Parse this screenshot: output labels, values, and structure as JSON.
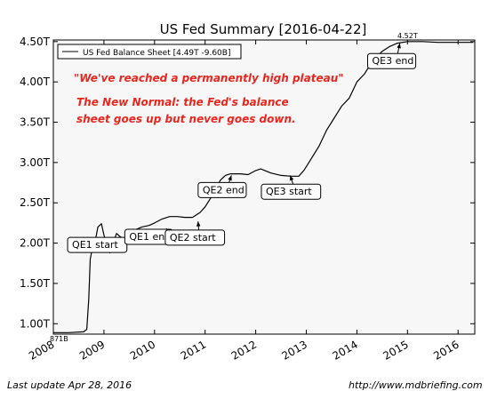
{
  "chart_data": {
    "type": "line",
    "title": "US Fed Summary  [2016-04-22]",
    "legend": {
      "label": "US Fed Balance Sheet [4.49T -9.60B]",
      "placement": "top-left"
    },
    "y_ticks": [
      "1.00T",
      "1.50T",
      "2.00T",
      "2.50T",
      "3.00T",
      "3.50T",
      "4.00T",
      "4.50T"
    ],
    "y_tick_values": [
      1.0,
      1.5,
      2.0,
      2.5,
      3.0,
      3.5,
      4.0,
      4.5
    ],
    "x_ticks": [
      "2008",
      "2009",
      "2010",
      "2011",
      "2012",
      "2013",
      "2014",
      "2015",
      "2016"
    ],
    "x_tick_values": [
      2008,
      2009,
      2010,
      2011,
      2012,
      2013,
      2014,
      2015,
      2016
    ],
    "xlim": [
      2008.0,
      2016.33
    ],
    "ylim": [
      0.871,
      4.52
    ],
    "grid": false,
    "min_label": "871B",
    "max_label": "4.52T",
    "series": [
      {
        "name": "US Fed Balance Sheet [4.49T -9.60B]",
        "color": "#000000",
        "points": [
          [
            2008.0,
            0.89
          ],
          [
            2008.3,
            0.89
          ],
          [
            2008.6,
            0.9
          ],
          [
            2008.66,
            0.93
          ],
          [
            2008.7,
            1.3
          ],
          [
            2008.73,
            1.8
          ],
          [
            2008.76,
            1.9
          ],
          [
            2008.8,
            1.95
          ],
          [
            2008.85,
            2.1
          ],
          [
            2008.88,
            2.2
          ],
          [
            2008.95,
            2.24
          ],
          [
            2009.0,
            2.1
          ],
          [
            2009.05,
            2.0
          ],
          [
            2009.08,
            1.95
          ],
          [
            2009.12,
            1.88
          ],
          [
            2009.18,
            2.0
          ],
          [
            2009.25,
            2.12
          ],
          [
            2009.32,
            2.08
          ],
          [
            2009.4,
            2.05
          ],
          [
            2009.5,
            2.08
          ],
          [
            2009.6,
            2.16
          ],
          [
            2009.75,
            2.2
          ],
          [
            2009.9,
            2.22
          ],
          [
            2010.0,
            2.25
          ],
          [
            2010.15,
            2.3
          ],
          [
            2010.3,
            2.33
          ],
          [
            2010.45,
            2.33
          ],
          [
            2010.6,
            2.32
          ],
          [
            2010.75,
            2.32
          ],
          [
            2010.9,
            2.38
          ],
          [
            2011.0,
            2.45
          ],
          [
            2011.1,
            2.55
          ],
          [
            2011.2,
            2.65
          ],
          [
            2011.3,
            2.78
          ],
          [
            2011.4,
            2.84
          ],
          [
            2011.5,
            2.86
          ],
          [
            2011.7,
            2.86
          ],
          [
            2011.85,
            2.85
          ],
          [
            2012.0,
            2.9
          ],
          [
            2012.1,
            2.92
          ],
          [
            2012.3,
            2.87
          ],
          [
            2012.5,
            2.84
          ],
          [
            2012.7,
            2.83
          ],
          [
            2012.85,
            2.83
          ],
          [
            2012.95,
            2.9
          ],
          [
            2013.05,
            3.0
          ],
          [
            2013.15,
            3.1
          ],
          [
            2013.25,
            3.2
          ],
          [
            2013.4,
            3.4
          ],
          [
            2013.55,
            3.55
          ],
          [
            2013.7,
            3.7
          ],
          [
            2013.85,
            3.8
          ],
          [
            2014.0,
            4.0
          ],
          [
            2014.15,
            4.1
          ],
          [
            2014.3,
            4.25
          ],
          [
            2014.5,
            4.38
          ],
          [
            2014.65,
            4.44
          ],
          [
            2014.8,
            4.48
          ],
          [
            2015.0,
            4.5
          ],
          [
            2015.3,
            4.5
          ],
          [
            2015.6,
            4.49
          ],
          [
            2015.9,
            4.49
          ],
          [
            2016.1,
            4.49
          ],
          [
            2016.3,
            4.49
          ]
        ]
      }
    ],
    "annotations": [
      {
        "text": "QE1 start",
        "x": 2008.88,
        "y": 2.05,
        "label_x": 2008.37,
        "label_y": 1.89
      },
      {
        "text": "QE1 end",
        "x": 2010.25,
        "y": 2.18,
        "label_x": 2009.5,
        "label_y": 1.99
      },
      {
        "text": "QE2 start",
        "x": 2010.86,
        "y": 2.27,
        "label_x": 2010.3,
        "label_y": 1.98
      },
      {
        "text": "QE2 end",
        "x": 2011.52,
        "y": 2.84,
        "label_x": 2010.95,
        "label_y": 2.57
      },
      {
        "text": "QE3 start",
        "x": 2012.68,
        "y": 2.84,
        "label_x": 2012.2,
        "label_y": 2.55
      },
      {
        "text": "QE3 end",
        "x": 2014.85,
        "y": 4.48,
        "label_x": 2014.3,
        "label_y": 4.17
      }
    ],
    "commentary": [
      "\"We've reached a permanently high plateau\"",
      "The New Normal: the Fed's balance",
      "sheet goes up but never goes down."
    ]
  },
  "footer": {
    "last_update": "Last update Apr 28, 2016",
    "url": "http://www.mdbriefing.com"
  }
}
